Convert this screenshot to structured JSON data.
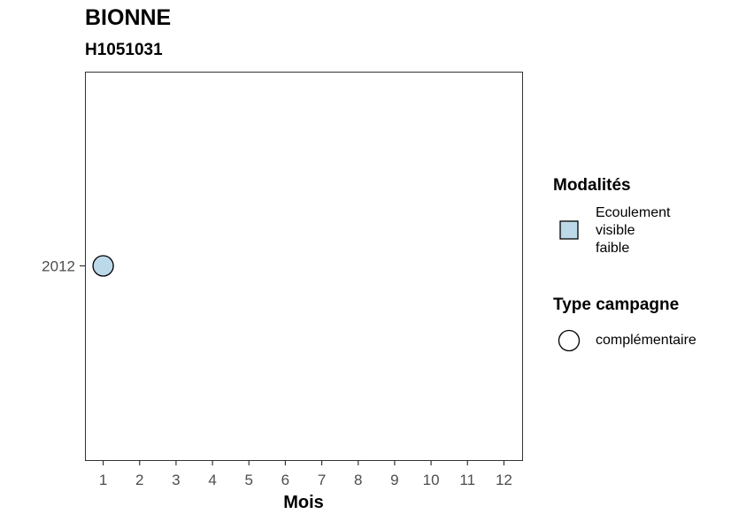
{
  "chart_data": {
    "type": "scatter",
    "title": "BIONNE",
    "subtitle": "H1051031",
    "xlabel": "Mois",
    "ylabel": "",
    "x_ticks": [
      "1",
      "2",
      "3",
      "4",
      "5",
      "6",
      "7",
      "8",
      "9",
      "10",
      "11",
      "12"
    ],
    "y_ticks": [
      "2012"
    ],
    "xlim": [
      0.5,
      12.5
    ],
    "grid": false,
    "points": [
      {
        "x": 1,
        "y": "2012",
        "modalite": "Ecoulement visible faible",
        "type_campagne": "complémentaire"
      }
    ],
    "legend": {
      "placement": "right",
      "fill": {
        "title": "Modalités",
        "items": [
          {
            "label": "Ecoulement visible faible",
            "lines": [
              "Ecoulement",
              "visible",
              "faible"
            ],
            "color": "#bcd9ea"
          }
        ]
      },
      "shape": {
        "title": "Type campagne",
        "items": [
          {
            "label": "complémentaire",
            "shape": "circle"
          }
        ]
      }
    }
  }
}
